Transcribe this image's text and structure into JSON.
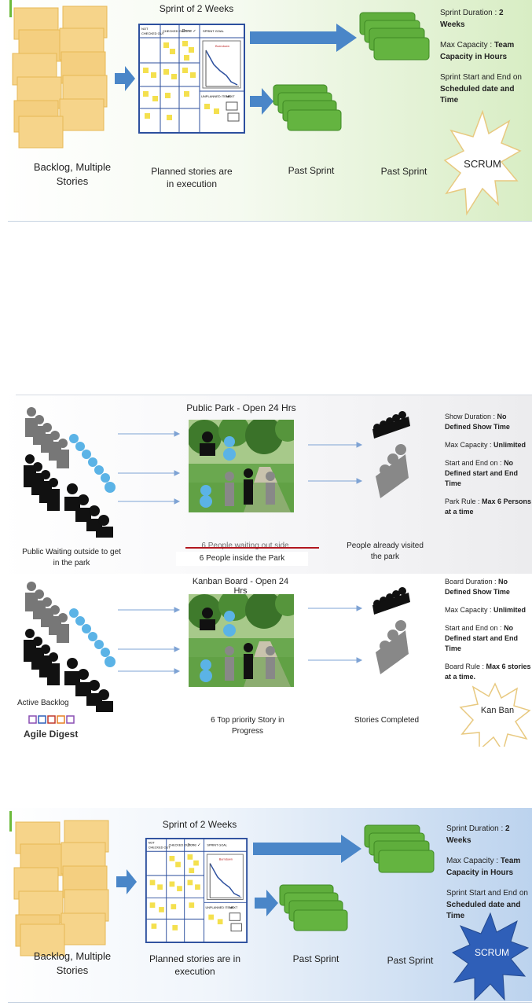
{
  "scrum_top": {
    "title": "Sprint of 2 Weeks",
    "backlog_label": "Backlog, Multiple Stories",
    "planned_label": "Planned stories are in execution",
    "past_sprint_1": "Past Sprint",
    "past_sprint_2": "Past Sprint",
    "badge": "SCRUM",
    "details": [
      {
        "key": "Sprint Duration : ",
        "value": "2 Weeks"
      },
      {
        "key": "Max Capacity : ",
        "value": "Team Capacity in Hours"
      },
      {
        "key": "Sprint Start and End on ",
        "value": "Scheduled date and Time"
      }
    ]
  },
  "park": {
    "title": "Public Park -  Open 24 Hrs",
    "waiting_label": "Public Waiting outside to get in the park",
    "struck_label": "6 People waiting out side",
    "inside_label": "6 People inside the Park",
    "visited_label": "People already visited the park",
    "details": [
      {
        "key": "Show Duration : ",
        "value": "No Defined Show Time"
      },
      {
        "key": "Max Capacity : ",
        "value": "Unlimited"
      },
      {
        "key": "Start and End on : ",
        "value": "No Defined start and End Time"
      },
      {
        "key": "Park Rule : ",
        "value": "Max 6 Persons at a time"
      }
    ]
  },
  "kanban": {
    "title": "Kanban Board -  Open 24 Hrs",
    "backlog_label": "Active Backlog",
    "logo_text": "Agile Digest",
    "progress_label": "6 Top priority Story in Progress",
    "completed_label": "Stories Completed",
    "badge": "Kan Ban",
    "details": [
      {
        "key": "Board Duration : ",
        "value": "No Defined Show Time"
      },
      {
        "key": "Max Capacity : ",
        "value": "Unlimited"
      },
      {
        "key": "Start and End on : ",
        "value": "No Defined start and End Time"
      },
      {
        "key": "Board Rule : ",
        "value": "Max 6 stories at a time."
      }
    ]
  },
  "scrum_bottom": {
    "title": "Sprint of 2 Weeks",
    "backlog_label": "Backlog, Multiple Stories",
    "planned_label": "Planned stories are in execution",
    "past_sprint_1": "Past Sprint",
    "past_sprint_2": "Past Sprint",
    "badge": "SCRUM",
    "details": [
      {
        "key": "Sprint Duration : ",
        "value": "2 Weeks"
      },
      {
        "key": "Max Capacity : ",
        "value": "Team Capacity in Hours"
      },
      {
        "key": "Sprint Start and End on ",
        "value": "Scheduled date and Time"
      }
    ]
  },
  "board": {
    "headers": [
      "NOT CHECKED OUT",
      "CHECKED OUT",
      "Done",
      "SPRINT GOAL"
    ],
    "chart_title": "Burndown",
    "lower_headers": [
      "UNPLANNED ITEMS",
      "NEXT"
    ]
  },
  "colors": {
    "sticky": "#f6d48a",
    "sticky_edge": "#e7b955",
    "green_card": "#5fae3c",
    "arrow_blue": "#4a86c8",
    "scrum_bg_green": "#e6f3d8",
    "scrum_bg_blue": "#cfe0f3",
    "badge_blue": "#2f5fb8"
  }
}
